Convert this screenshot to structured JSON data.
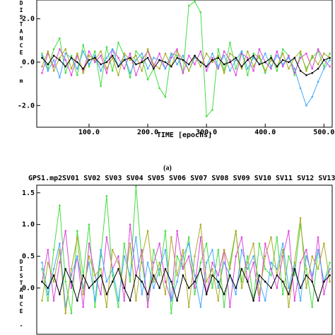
{
  "chart_data": [
    {
      "type": "line",
      "ylabel": "DISTANCE - m",
      "xlabel": "TIME [epochs]",
      "caption": "(a)",
      "xlim": [
        11,
        514
      ],
      "ylim": [
        -3.0,
        2.9
      ],
      "xticks": [
        {
          "value": 100,
          "label": "100.0"
        },
        {
          "value": 200,
          "label": "200.0"
        },
        {
          "value": 300,
          "label": "300.0"
        },
        {
          "value": 400,
          "label": "400.0"
        },
        {
          "value": 500,
          "label": "500.0"
        }
      ],
      "yticks": [
        {
          "value": -2,
          "label": "-2.0"
        },
        {
          "value": 0,
          "label": "0.0"
        },
        {
          "value": 2,
          "label": "2.0"
        }
      ],
      "x": [
        20,
        30,
        40,
        50,
        60,
        70,
        80,
        90,
        100,
        110,
        120,
        130,
        140,
        150,
        160,
        170,
        180,
        190,
        200,
        210,
        220,
        230,
        240,
        250,
        260,
        270,
        280,
        290,
        300,
        310,
        320,
        330,
        340,
        350,
        360,
        370,
        380,
        390,
        400,
        410,
        420,
        430,
        440,
        450,
        460,
        470,
        480,
        490,
        500,
        510
      ],
      "series": [
        {
          "color": "#44dd44",
          "values": [
            0.4,
            -0.3,
            0.6,
            1.1,
            -0.5,
            0.3,
            -0.6,
            0.8,
            -0.2,
            0.5,
            -1.1,
            0.7,
            -0.4,
            0.9,
            0.3,
            -0.7,
            0.5,
            0.2,
            -0.8,
            -0.3,
            -1.2,
            -1.6,
            0.4,
            0.3,
            -0.5,
            2.6,
            2.8,
            2.3,
            -2.5,
            -2.2,
            0.6,
            -0.4,
            0.9,
            -0.3,
            0.5,
            -0.6,
            0.4,
            0.2,
            -0.5,
            0.3,
            -0.4,
            0.6,
            0.3,
            -0.6,
            0.4,
            -0.3,
            0.2,
            0.5,
            -0.2,
            0.4
          ]
        },
        {
          "color": "#dd44dd",
          "values": [
            -0.5,
            0.4,
            -0.2,
            0.6,
            0.1,
            -0.6,
            0.3,
            -0.4,
            0.5,
            0.0,
            0.3,
            -0.5,
            0.6,
            0.2,
            -0.3,
            0.4,
            -0.6,
            0.1,
            0.5,
            -0.2,
            0.4,
            -0.3,
            0.2,
            0.6,
            -0.5,
            0.3,
            -0.1,
            0.5,
            -0.4,
            0.2,
            -0.3,
            0.5,
            0.1,
            -0.6,
            0.4,
            0.2,
            -0.4,
            0.6,
            0.0,
            -0.3,
            0.5,
            -0.2,
            0.3,
            -0.5,
            0.2,
            0.4,
            -0.3,
            0.6,
            0.1,
            -0.2
          ]
        },
        {
          "color": "#44aaff",
          "values": [
            0.3,
            -0.4,
            0.1,
            -0.7,
            0.4,
            0.2,
            -0.3,
            0.5,
            -0.1,
            0.3,
            -0.4,
            0.2,
            0.6,
            -0.2,
            0.3,
            -0.5,
            0.1,
            0.4,
            -0.3,
            0.2,
            0.1,
            -0.3,
            0.4,
            -0.1,
            0.3,
            -0.4,
            0.2,
            0.0,
            -0.2,
            0.4,
            -0.2,
            0.3,
            -0.4,
            0.1,
            0.5,
            -0.3,
            0.2,
            -0.1,
            0.4,
            -0.2,
            0.3,
            -0.1,
            0.2,
            -0.3,
            -1.2,
            -2.0,
            -1.6,
            -0.9,
            -0.3,
            0.1
          ]
        },
        {
          "color": "#aaaa22",
          "values": [
            -0.2,
            0.5,
            -0.4,
            0.2,
            0.6,
            -0.3,
            0.4,
            -0.5,
            0.3,
            0.1,
            0.5,
            -0.3,
            0.2,
            -0.6,
            0.4,
            0.1,
            0.3,
            -0.4,
            0.6,
            -0.1,
            -0.3,
            0.4,
            -0.2,
            0.5,
            0.1,
            -0.4,
            0.3,
            -0.2,
            0.4,
            0.0,
            0.3,
            -0.5,
            0.4,
            0.2,
            -0.3,
            0.5,
            -0.2,
            0.3,
            -0.4,
            0.1,
            -0.2,
            0.4,
            -0.3,
            0.2,
            0.5,
            -0.4,
            0.3,
            -0.1,
            0.4,
            0.2
          ]
        },
        {
          "color": "#000000",
          "values": [
            0.2,
            -0.1,
            0.3,
            0.1,
            -0.2,
            0.2,
            0.0,
            -0.3,
            0.1,
            0.2,
            -0.1,
            0.0,
            0.3,
            -0.2,
            0.1,
            0.2,
            -0.1,
            0.0,
            0.2,
            -0.3,
            0.1,
            0.0,
            -0.2,
            0.2,
            0.1,
            -0.1,
            0.3,
            0.0,
            -0.2,
            0.1,
            0.2,
            -0.1,
            0.0,
            0.2,
            -0.2,
            0.1,
            0.3,
            -0.1,
            0.0,
            0.2,
            -0.2,
            0.1,
            0.0,
            0.2,
            -0.4,
            -0.6,
            -0.5,
            -0.3,
            0.1,
            0.2
          ]
        }
      ]
    },
    {
      "type": "line",
      "title": "GPS1.mp2",
      "ylabel": "DISTANCE - m",
      "legend": [
        "SV01",
        "SV02",
        "SV03",
        "SV04",
        "SV05",
        "SV06",
        "SV07",
        "SV08",
        "SV09",
        "SV10",
        "SV11",
        "SV12",
        "SV13"
      ],
      "xlim": [
        11,
        514
      ],
      "ylim": [
        -0.73,
        1.62
      ],
      "yticks": [
        {
          "value": 0,
          "label": "0.0"
        },
        {
          "value": 0.5,
          "label": "0.5"
        },
        {
          "value": 1,
          "label": "1.0"
        },
        {
          "value": 1.5,
          "label": "1.5"
        }
      ],
      "x": [
        20,
        30,
        40,
        50,
        60,
        70,
        80,
        90,
        100,
        110,
        120,
        130,
        140,
        150,
        160,
        170,
        180,
        190,
        200,
        210,
        220,
        230,
        240,
        250,
        260,
        270,
        280,
        290,
        300,
        310,
        320,
        330,
        340,
        350,
        360,
        370,
        380,
        390,
        400,
        410,
        420,
        430,
        440,
        450,
        460,
        470,
        480,
        490,
        500,
        510
      ],
      "series": [
        {
          "color": "#44dd44",
          "values": [
            0.3,
            -0.2,
            0.6,
            1.3,
            0.1,
            -0.4,
            0.9,
            0.2,
            1.0,
            -0.3,
            0.5,
            1.45,
            0.2,
            -0.3,
            0.7,
            0.1,
            1.6,
            0.4,
            -0.2,
            0.6,
            0.2,
            0.9,
            -0.4,
            0.5,
            0.3,
            0.8,
            -0.1,
            0.4,
            0.7,
            0.0,
            0.6,
            -0.3,
            0.4,
            0.9,
            0.1,
            0.5,
            -0.2,
            0.7,
            0.3,
            0.2,
            0.8,
            -0.1,
            0.5,
            0.2,
            1.0,
            0.3,
            -0.3,
            0.6,
            0.1,
            0.4
          ]
        },
        {
          "color": "#dd44dd",
          "values": [
            0.1,
            0.6,
            -0.2,
            0.4,
            0.9,
            0.0,
            0.5,
            -0.3,
            0.7,
            0.2,
            -0.1,
            0.8,
            0.3,
            0.5,
            -0.2,
            1.0,
            0.2,
            0.6,
            -0.3,
            0.4,
            0.7,
            0.1,
            -0.2,
            0.9,
            0.3,
            0.5,
            0.0,
            0.8,
            -0.1,
            0.4,
            0.2,
            0.6,
            -0.3,
            0.5,
            0.8,
            0.1,
            0.4,
            -0.2,
            0.7,
            0.3,
            0.0,
            0.5,
            0.9,
            -0.2,
            0.4,
            0.6,
            0.1,
            0.8,
            -0.1,
            0.3
          ]
        },
        {
          "color": "#44aaff",
          "values": [
            0.4,
            -0.1,
            0.3,
            0.7,
            -0.3,
            0.2,
            0.5,
            0.0,
            0.4,
            -0.2,
            0.6,
            0.1,
            0.3,
            -0.2,
            0.5,
            0.2,
            0.8,
            -0.1,
            0.4,
            0.0,
            0.3,
            0.6,
            -0.2,
            0.1,
            0.5,
            0.7,
            0.2,
            -0.3,
            0.4,
            0.6,
            0.0,
            0.4,
            0.2,
            -0.1,
            0.6,
            0.3,
            0.5,
            0.1,
            -0.2,
            0.4,
            0.3,
            0.7,
            0.0,
            0.4,
            -0.2,
            0.5,
            0.2,
            0.6,
            0.1,
            0.3
          ]
        },
        {
          "color": "#aaaa22",
          "values": [
            -0.2,
            0.4,
            0.1,
            0.6,
            -0.4,
            0.3,
            0.8,
            -0.1,
            0.5,
            0.2,
            0.3,
            -0.3,
            0.6,
            0.4,
            0.0,
            0.7,
            -0.2,
            0.5,
            0.9,
            0.1,
            0.4,
            -0.1,
            0.8,
            0.2,
            0.6,
            -0.3,
            0.5,
            1.0,
            0.1,
            0.3,
            -0.2,
            0.6,
            0.3,
            0.9,
            0.0,
            0.4,
            0.7,
            -0.1,
            0.5,
            0.8,
            0.2,
            0.6,
            -0.3,
            0.4,
            1.1,
            0.0,
            0.5,
            0.3,
            0.7,
            0.1
          ]
        },
        {
          "color": "#000000",
          "values": [
            0.1,
            0.0,
            0.2,
            -0.1,
            0.3,
            0.1,
            -0.2,
            0.2,
            0.0,
            0.1,
            0.2,
            -0.1,
            0.1,
            0.3,
            0.0,
            -0.2,
            0.2,
            0.1,
            -0.1,
            0.2,
            0.0,
            0.3,
            0.1,
            -0.2,
            0.2,
            0.0,
            0.1,
            0.3,
            -0.1,
            0.2,
            0.1,
            -0.1,
            0.2,
            0.0,
            0.3,
            0.1,
            -0.2,
            0.2,
            0.1,
            0.0,
            0.2,
            0.1,
            -0.1,
            0.3,
            0.0,
            0.2,
            0.1,
            -0.2,
            0.1,
            0.2
          ]
        }
      ]
    }
  ]
}
